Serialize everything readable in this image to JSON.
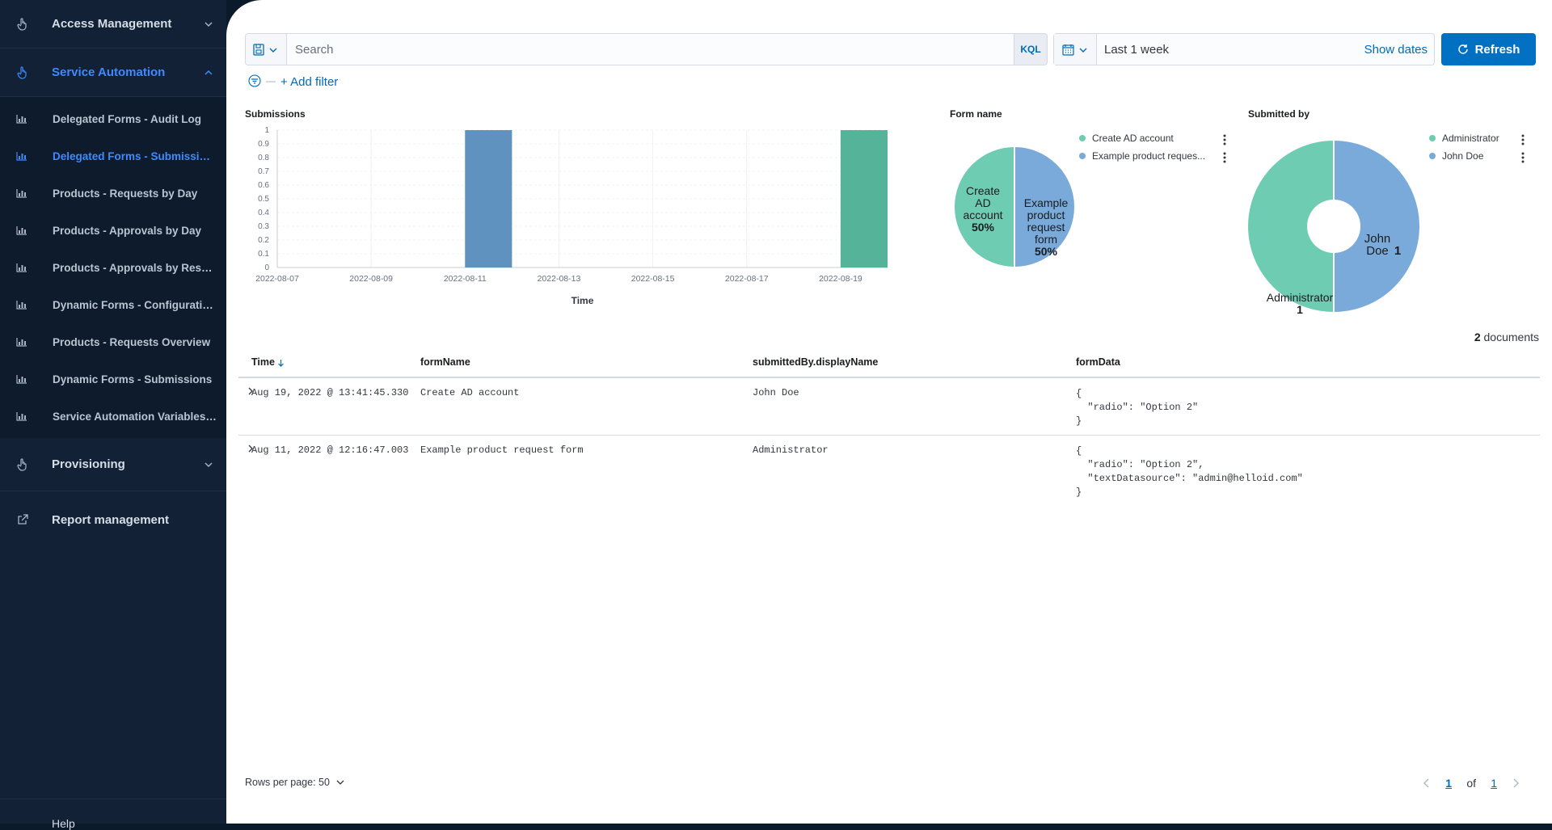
{
  "sidebar": {
    "sections": [
      {
        "label": "Access Management",
        "icon": "hand-pointer-icon",
        "expanded": false
      },
      {
        "label": "Service Automation",
        "icon": "hand-pointer-icon",
        "expanded": true
      }
    ],
    "items": [
      {
        "label": "Delegated Forms - Audit Log",
        "icon": "bar-chart-icon"
      },
      {
        "label": "Delegated Forms - Submissions",
        "icon": "bar-chart-icon",
        "active": true
      },
      {
        "label": "Products - Requests by Day",
        "icon": "bar-chart-icon"
      },
      {
        "label": "Products - Approvals by Day",
        "icon": "bar-chart-icon"
      },
      {
        "label": "Products - Approvals by Respo...",
        "icon": "bar-chart-icon"
      },
      {
        "label": "Dynamic Forms - Configuration...",
        "icon": "bar-chart-icon"
      },
      {
        "label": "Products - Requests Overview",
        "icon": "bar-chart-icon"
      },
      {
        "label": "Dynamic Forms - Submissions",
        "icon": "bar-chart-icon"
      },
      {
        "label": "Service Automation Variables -...",
        "icon": "bar-chart-icon"
      }
    ],
    "provisioning": {
      "label": "Provisioning",
      "icon": "hand-pointer-icon"
    },
    "report_management": {
      "label": "Report management",
      "icon": "external-link-icon"
    },
    "bottom_label": "Help"
  },
  "querybar": {
    "search_placeholder": "Search",
    "kql": "KQL",
    "date_range": "Last 1 week",
    "show_dates": "Show dates",
    "refresh": "Refresh"
  },
  "filterbar": {
    "add_filter": "+ Add filter",
    "dash": "—"
  },
  "panels": {
    "submissions_title": "Submissions",
    "form_name_title": "Form name",
    "submitted_by_title": "Submitted by"
  },
  "chart_data": [
    {
      "type": "bar",
      "title": "Submissions",
      "xlabel": "Time",
      "ylabel": "",
      "x_ticks": [
        "2022-08-07",
        "2022-08-09",
        "2022-08-11",
        "2022-08-13",
        "2022-08-15",
        "2022-08-17",
        "2022-08-19"
      ],
      "y_ticks": [
        "0",
        "0.1",
        "0.2",
        "0.3",
        "0.4",
        "0.5",
        "0.6",
        "0.7",
        "0.8",
        "0.9",
        "1"
      ],
      "ylim": [
        0,
        1
      ],
      "xlim": [
        "2022-08-07",
        "2022-08-20"
      ],
      "bars": [
        {
          "x": "2022-08-11",
          "value": 1,
          "series": "Example product request form",
          "color": "#6092c0"
        },
        {
          "x": "2022-08-19",
          "value": 1,
          "series": "Create AD account",
          "color": "#54b399"
        }
      ],
      "grid": true
    },
    {
      "type": "pie",
      "title": "Form name",
      "slices": [
        {
          "name": "Create AD account",
          "value": 50,
          "label_lines": [
            "Create",
            "AD",
            "account"
          ],
          "value_label": "50%",
          "color": "#6dccb1"
        },
        {
          "name": "Example product request form",
          "value": 50,
          "label_lines": [
            "Example",
            "product",
            "request",
            "form"
          ],
          "value_label": "50%",
          "color": "#79aad9"
        }
      ],
      "legend": [
        "Create AD account",
        "Example product reques..."
      ],
      "legend_position": "top-right"
    },
    {
      "type": "pie",
      "title": "Submitted by",
      "donut": true,
      "slices": [
        {
          "name": "Administrator",
          "value": 1,
          "label_lines": [
            "Administrator"
          ],
          "value_label": "1",
          "color": "#6dccb1"
        },
        {
          "name": "John Doe",
          "value": 1,
          "label_lines": [
            "John",
            "Doe"
          ],
          "value_label": "1",
          "color": "#79aad9"
        }
      ],
      "legend": [
        "Administrator",
        "John Doe"
      ],
      "legend_position": "top-right"
    }
  ],
  "documents": {
    "count": "2",
    "suffix": " documents"
  },
  "table": {
    "columns": [
      "Time",
      "formName",
      "submittedBy.displayName",
      "formData"
    ],
    "rows": [
      {
        "time": "Aug 19, 2022 @ 13:41:45.330",
        "formName": "Create AD account",
        "submittedBy": "John Doe",
        "formData": "{\n  \"radio\": \"Option 2\"\n}"
      },
      {
        "time": "Aug 11, 2022 @ 12:16:47.003",
        "formName": "Example product request form",
        "submittedBy": "Administrator",
        "formData": "{\n  \"radio\": \"Option 2\",\n  \"textDatasource\": \"admin@helloid.com\"\n}"
      }
    ]
  },
  "pager": {
    "rows_per_page": "Rows per page: 50",
    "current_page": "1",
    "of": "of",
    "total_pages": "1"
  },
  "colors": {
    "accent": "#0071c2",
    "sidebar_bg": "#122136",
    "active_link": "#3d8bff",
    "series_green": "#54b399",
    "series_blue": "#6092c0"
  }
}
